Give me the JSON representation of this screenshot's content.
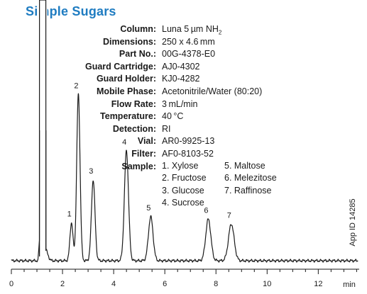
{
  "title": "Simple Sugars",
  "conditions": [
    {
      "label": "Column:",
      "value": "Luna 5 µm NH",
      "sub": "2"
    },
    {
      "label": "Dimensions:",
      "value": "250 x 4.6 mm"
    },
    {
      "label": "Part No.:",
      "value": "00G-4378-E0"
    },
    {
      "label": "Guard Cartridge:",
      "value": "AJ0-4302"
    },
    {
      "label": "Guard Holder:",
      "value": "KJ0-4282"
    },
    {
      "label": "Mobile Phase:",
      "value": "Acetonitrile/Water (80:20)"
    },
    {
      "label": "Flow Rate:",
      "value": "3 mL/min"
    },
    {
      "label": "Temperature:",
      "value": "40 °C"
    },
    {
      "label": "Detection:",
      "value": "RI"
    },
    {
      "label": "Vial:",
      "value": "AR0-9925-13"
    },
    {
      "label": "Filter:",
      "value": "AF0-8103-52"
    },
    {
      "label": "Sample:",
      "value": ""
    }
  ],
  "sample_list": [
    "1. Xylose",
    "2. Fructose",
    "3. Glucose",
    "4. Sucrose",
    "5. Maltose",
    "6. Melezitose",
    "7. Raffinose"
  ],
  "app_id": "App ID 14285",
  "chart_data": {
    "type": "line",
    "title": "",
    "xlabel": "min",
    "ylabel": "",
    "xlim": [
      0,
      13.6
    ],
    "xticks": [
      0,
      2,
      4,
      6,
      8,
      10,
      12
    ],
    "xtick_labels": [
      "0",
      "2",
      "4",
      "6",
      "8",
      "10",
      "12"
    ],
    "grid": false,
    "baseline": 0.0,
    "solvent_front": {
      "start": 1.1,
      "end": 1.35
    },
    "peaks": [
      {
        "label": "1",
        "rt": 2.35,
        "height": 0.155,
        "width": 0.06
      },
      {
        "label": "2",
        "rt": 2.62,
        "height": 0.68,
        "width": 0.065
      },
      {
        "label": "3",
        "rt": 3.2,
        "height": 0.33,
        "width": 0.07
      },
      {
        "label": "4",
        "rt": 4.5,
        "height": 0.45,
        "width": 0.08
      },
      {
        "label": "5",
        "rt": 5.45,
        "height": 0.18,
        "width": 0.09
      },
      {
        "label": "6",
        "rt": 7.7,
        "height": 0.17,
        "width": 0.1
      },
      {
        "label": "7",
        "rt": 8.6,
        "height": 0.15,
        "width": 0.11
      }
    ]
  }
}
